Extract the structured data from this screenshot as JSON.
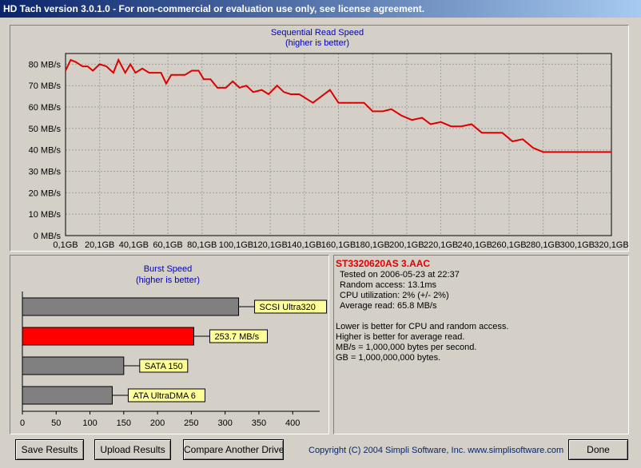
{
  "window": {
    "title": "HD Tach version 3.0.1.0  - For non-commercial or evaluation use only, see license agreement."
  },
  "colors": {
    "read_line": "#dd0000",
    "burst_highlight": "#ff0000",
    "burst_other": "#808080",
    "chart_title": "#0000c0",
    "label_bg": "#ffff99"
  },
  "chart_data": [
    {
      "type": "line",
      "title": "Sequential Read Speed",
      "subtitle": "(higher is better)",
      "y_unit": "MB/s",
      "ylim": [
        0,
        85
      ],
      "xlim": [
        0,
        320
      ],
      "grid": true,
      "y_ticks": [
        0,
        10,
        20,
        30,
        40,
        50,
        60,
        70,
        80
      ],
      "y_tick_labels": [
        "0 MB/s",
        "10 MB/s",
        "20 MB/s",
        "30 MB/s",
        "40 MB/s",
        "50 MB/s",
        "60 MB/s",
        "70 MB/s",
        "80 MB/s"
      ],
      "x_tick_labels": [
        "0,1GB",
        "20,1GB",
        "40,1GB",
        "60,1GB",
        "80,1GB",
        "100,1GB",
        "120,1GB",
        "140,1GB",
        "160,1GB",
        "180,1GB",
        "200,1GB",
        "220,1GB",
        "240,1GB",
        "260,1GB",
        "280,1GB",
        "300,1GB",
        "320,1GB"
      ],
      "series": [
        {
          "x": [
            0,
            3,
            6,
            10,
            13,
            16,
            20,
            24,
            28,
            31,
            35,
            38,
            41,
            45,
            49,
            52,
            56,
            59,
            62,
            66,
            70,
            74,
            78,
            81,
            85,
            89,
            94,
            98,
            102,
            106,
            110,
            115,
            119,
            124,
            128,
            132,
            137,
            141,
            145,
            150,
            155,
            160,
            165,
            170,
            175,
            180,
            186,
            191,
            197,
            203,
            209,
            214,
            220,
            226,
            232,
            238,
            244,
            250,
            256,
            262,
            268,
            274,
            280,
            286,
            292,
            298,
            302,
            306,
            310,
            314,
            318,
            320
          ],
          "y": [
            77,
            82,
            81,
            79,
            79,
            77,
            80,
            79,
            76,
            82,
            76,
            80,
            76,
            78,
            76,
            76,
            76,
            71,
            75,
            75,
            75,
            77,
            77,
            73,
            73,
            69,
            69,
            72,
            69,
            70,
            67,
            68,
            66,
            70,
            67,
            66,
            66,
            64,
            62,
            65,
            68,
            62,
            62,
            62,
            62,
            58,
            58,
            59,
            56,
            54,
            55,
            52,
            53,
            51,
            51,
            52,
            48,
            48,
            48,
            44,
            45,
            41,
            39,
            39,
            39,
            39,
            39,
            39,
            39,
            39,
            39,
            39
          ]
        }
      ]
    },
    {
      "type": "bar",
      "orientation": "horizontal",
      "title": "Burst Speed",
      "subtitle": "(higher is better)",
      "xlim": [
        0,
        440
      ],
      "x_ticks": [
        0,
        50,
        100,
        150,
        200,
        250,
        300,
        350,
        400
      ],
      "x_tick_labels": [
        "0",
        "50",
        "100",
        "150",
        "200",
        "250",
        "300",
        "350",
        "400"
      ],
      "categories": [
        "SCSI Ultra320",
        "253.7 MB/s",
        "SATA 150",
        "ATA UltraDMA 6"
      ],
      "values": [
        320,
        253.7,
        150,
        133
      ],
      "highlight_index": 1
    }
  ],
  "info": {
    "drive_name": "ST3320620AS 3.AAC",
    "tested_on": "Tested on 2006-05-23 at 22:37",
    "random_access": "Random access: 13.1ms",
    "cpu_utilization": "CPU utilization: 2% (+/- 2%)",
    "average_read": "Average read: 65.8 MB/s",
    "notes": [
      "Lower is better for CPU and random access.",
      "Higher is better for average read.",
      "MB/s = 1,000,000 bytes per second.",
      "GB = 1,000,000,000 bytes."
    ]
  },
  "buttons": {
    "save": "Save Results",
    "upload": "Upload Results",
    "compare": "Compare Another Drive",
    "done": "Done"
  },
  "copyright": "Copyright (C) 2004 Simpli Software, Inc. www.simplisoftware.com"
}
